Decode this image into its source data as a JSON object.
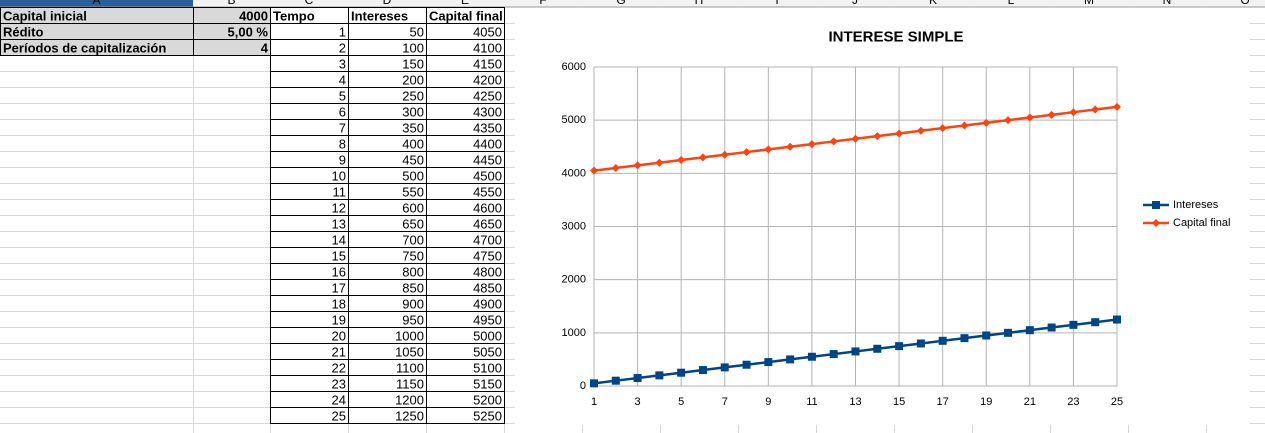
{
  "sheet": {
    "columns": [
      "A",
      "B",
      "C",
      "D",
      "E",
      "F",
      "G",
      "H",
      "I",
      "J",
      "K",
      "L",
      "M",
      "N",
      "O"
    ],
    "params": [
      {
        "label": "Capital inicial",
        "value": 4000
      },
      {
        "label": "Rédito",
        "value": "5,00 %"
      },
      {
        "label": "Períodos de capitalización",
        "value": 4
      }
    ],
    "table": {
      "headers": [
        "Tempo",
        "Intereses",
        "Capital final"
      ],
      "rows": [
        [
          1,
          50,
          4050
        ],
        [
          2,
          100,
          4100
        ],
        [
          3,
          150,
          4150
        ],
        [
          4,
          200,
          4200
        ],
        [
          5,
          250,
          4250
        ],
        [
          6,
          300,
          4300
        ],
        [
          7,
          350,
          4350
        ],
        [
          8,
          400,
          4400
        ],
        [
          9,
          450,
          4450
        ],
        [
          10,
          500,
          4500
        ],
        [
          11,
          550,
          4550
        ],
        [
          12,
          600,
          4600
        ],
        [
          13,
          650,
          4650
        ],
        [
          14,
          700,
          4700
        ],
        [
          15,
          750,
          4750
        ],
        [
          16,
          800,
          4800
        ],
        [
          17,
          850,
          4850
        ],
        [
          18,
          900,
          4900
        ],
        [
          19,
          950,
          4950
        ],
        [
          20,
          1000,
          5000
        ],
        [
          21,
          1050,
          5050
        ],
        [
          22,
          1100,
          5100
        ],
        [
          23,
          1150,
          5150
        ],
        [
          24,
          1200,
          5200
        ],
        [
          25,
          1250,
          5250
        ]
      ]
    }
  },
  "chart_data": {
    "type": "line",
    "title": "INTERESE SIMPLE",
    "x": [
      1,
      2,
      3,
      4,
      5,
      6,
      7,
      8,
      9,
      10,
      11,
      12,
      13,
      14,
      15,
      16,
      17,
      18,
      19,
      20,
      21,
      22,
      23,
      24,
      25
    ],
    "series": [
      {
        "name": "Intereses",
        "color": "#004586",
        "marker": "square",
        "values": [
          50,
          100,
          150,
          200,
          250,
          300,
          350,
          400,
          450,
          500,
          550,
          600,
          650,
          700,
          750,
          800,
          850,
          900,
          950,
          1000,
          1050,
          1100,
          1150,
          1200,
          1250
        ]
      },
      {
        "name": "Capital final",
        "color": "#ff420e",
        "marker": "diamond",
        "values": [
          4050,
          4100,
          4150,
          4200,
          4250,
          4300,
          4350,
          4400,
          4450,
          4500,
          4550,
          4600,
          4650,
          4700,
          4750,
          4800,
          4850,
          4900,
          4950,
          5000,
          5050,
          5100,
          5150,
          5200,
          5250
        ]
      }
    ],
    "xlim": [
      1,
      25
    ],
    "xticks": [
      1,
      3,
      5,
      7,
      9,
      11,
      13,
      15,
      17,
      19,
      21,
      23,
      25
    ],
    "ylim": [
      0,
      6000
    ],
    "yticks": [
      0,
      1000,
      2000,
      3000,
      4000,
      5000,
      6000
    ],
    "grid": true,
    "legend": "right"
  }
}
